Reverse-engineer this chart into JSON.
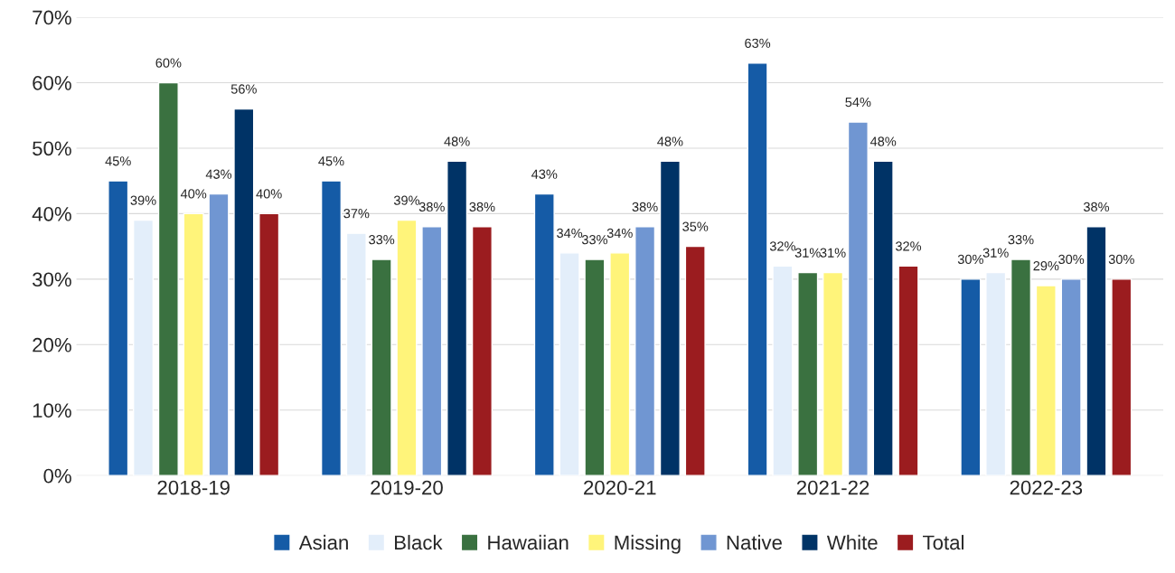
{
  "chart_data": {
    "type": "bar",
    "categories": [
      "2018-19",
      "2019-20",
      "2020-21",
      "2021-22",
      "2022-23"
    ],
    "ylim": [
      0,
      70
    ],
    "yticks": [
      {
        "value": 0,
        "label": "0%"
      },
      {
        "value": 10,
        "label": "10%"
      },
      {
        "value": 20,
        "label": "20%"
      },
      {
        "value": 30,
        "label": "30%"
      },
      {
        "value": 40,
        "label": "40%"
      },
      {
        "value": 50,
        "label": "50%"
      },
      {
        "value": 60,
        "label": "60%"
      },
      {
        "value": 70,
        "label": "70%"
      }
    ],
    "grid": "y",
    "legend": "bottom",
    "series": [
      {
        "name": "Asian",
        "color": "#155ba6",
        "values": [
          45,
          45,
          43,
          63,
          30
        ],
        "value_labels": [
          "45%",
          "45%",
          "43%",
          "63%",
          "30%"
        ]
      },
      {
        "name": "Black",
        "color": "#e3eefa",
        "values": [
          39,
          37,
          34,
          32,
          31
        ],
        "value_labels": [
          "39%",
          "37%",
          "34%",
          "32%",
          "31%"
        ]
      },
      {
        "name": "Hawaiian",
        "color": "#3a7140",
        "values": [
          60,
          33,
          33,
          31,
          33
        ],
        "value_labels": [
          "60%",
          "33%",
          "33%",
          "31%",
          "33%"
        ]
      },
      {
        "name": "Missing",
        "color": "#fff47a",
        "values": [
          40,
          39,
          34,
          31,
          29
        ],
        "value_labels": [
          "40%",
          "39%",
          "34%",
          "31%",
          "29%"
        ]
      },
      {
        "name": "Native",
        "color": "#7096d2",
        "values": [
          43,
          38,
          38,
          54,
          30
        ],
        "value_labels": [
          "43%",
          "38%",
          "38%",
          "54%",
          "30%"
        ]
      },
      {
        "name": "White",
        "color": "#003366",
        "values": [
          56,
          48,
          48,
          48,
          38
        ],
        "value_labels": [
          "56%",
          "48%",
          "48%",
          "48%",
          "38%"
        ]
      },
      {
        "name": "Total",
        "color": "#9b1c1f",
        "values": [
          40,
          38,
          35,
          32,
          30
        ],
        "value_labels": [
          "40%",
          "38%",
          "35%",
          "32%",
          "30%"
        ]
      }
    ]
  }
}
